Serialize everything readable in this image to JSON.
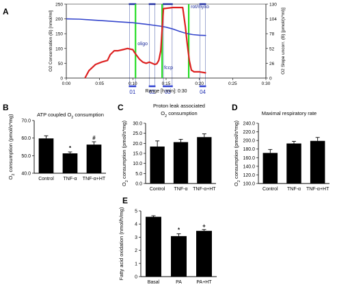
{
  "chart_data": [
    {
      "panel": "A",
      "type": "line",
      "title": "",
      "xlabel": "Range [h:min]: 0:30",
      "ylabel_left": "O2 Concentration (B) [nmol/ml]",
      "ylabel_right": "O2 Slope uncorr. (B) [pmol/(s*ml)]",
      "x_ticks": [
        "0:00",
        "0:05",
        "0:10",
        "0:15",
        "0:20",
        "0:25",
        "0:30"
      ],
      "x_range_minutes": [
        0,
        30
      ],
      "yleft_ticks": [
        0,
        50,
        100,
        150,
        200,
        250
      ],
      "ylim_left": [
        0,
        250
      ],
      "yright_ticks": [
        0,
        26,
        52,
        78,
        104,
        130
      ],
      "ylim_right": [
        0,
        130
      ],
      "grid": false,
      "series": [
        {
          "color": "#3344cc",
          "axis": "left",
          "x": [
            0,
            2,
            4,
            6,
            8,
            10,
            12,
            14,
            15,
            16,
            17,
            18,
            19,
            20,
            21
          ],
          "values": [
            200,
            199,
            196,
            193,
            190,
            187,
            182,
            176,
            172,
            166,
            158,
            151,
            147,
            145,
            144
          ]
        },
        {
          "color": "#dd2020",
          "axis": "right",
          "x": [
            2.8,
            3.4,
            4.4,
            5.3,
            6.2,
            6.6,
            7.2,
            7.8,
            8.5,
            9.2,
            10.0,
            10.3,
            11.0,
            11.5,
            12.0,
            12.5,
            13.3,
            13.6,
            13.9,
            14.2,
            14.6,
            16.0,
            17.5,
            17.9,
            18.2,
            18.5,
            18.8,
            19.2,
            20.0,
            21.0
          ],
          "values": [
            0,
            13,
            24,
            28,
            31,
            41,
            48,
            48,
            50,
            52,
            50,
            44,
            33,
            28,
            26,
            28,
            24,
            25,
            31,
            48,
            122,
            124,
            124,
            90,
            58,
            30,
            14,
            11,
            11,
            9
          ]
        }
      ],
      "markers": [
        {
          "label": "oligo",
          "x": 10.4
        },
        {
          "label": "fccp",
          "x": 14.4
        },
        {
          "label": "rot/myxo",
          "x": 18.4
        }
      ],
      "marker_lines_x": [
        10.4,
        14.4,
        18.4
      ],
      "boxes": [
        {
          "label": "01",
          "x_range": [
            9.5,
            10.4
          ]
        },
        {
          "label": "02",
          "x_range": [
            12.5,
            13.3
          ]
        },
        {
          "label": "03",
          "x_range": [
            14.6,
            15.9
          ]
        },
        {
          "label": "04",
          "x_range": [
            20.1,
            20.9
          ]
        }
      ]
    },
    {
      "panel": "B",
      "type": "bar",
      "title": "ATP coupled O2 consumption",
      "categories": [
        "Control",
        "TNF-α",
        "TNF-α+HT"
      ],
      "values": [
        59.8,
        51.3,
        56.3
      ],
      "errors": [
        1.5,
        0.8,
        1.6
      ],
      "significance": [
        "",
        "*",
        "#"
      ],
      "ylabel": "O2 consumption (pmol/s*mg)",
      "y_ticks": [
        40.0,
        50.0,
        60.0,
        70.0
      ],
      "ylim": [
        40,
        70
      ],
      "grid": false
    },
    {
      "panel": "C",
      "type": "bar",
      "title": "Proton leak associated O2 consumption",
      "categories": [
        "Control",
        "TNF-α",
        "TNF-α+HT"
      ],
      "values": [
        18.4,
        20.6,
        23.1
      ],
      "errors": [
        2.8,
        1.4,
        1.6
      ],
      "significance": [
        "",
        "",
        ""
      ],
      "ylabel": "O2 consumption (pmol/s*mg)",
      "y_ticks": [
        0.0,
        5.0,
        10.0,
        15.0,
        20.0,
        25.0,
        30.0
      ],
      "ylim": [
        0,
        30
      ],
      "grid": false
    },
    {
      "panel": "D",
      "type": "bar",
      "title": "Maximal respiratory rate",
      "categories": [
        "Control",
        "TNF-α",
        "TNF-α+HT"
      ],
      "values": [
        171,
        193,
        199
      ],
      "errors": [
        8,
        5,
        8
      ],
      "significance": [
        "",
        "",
        ""
      ],
      "ylabel": "O2 consumption (pmol/s*mg)",
      "y_ticks": [
        100.0,
        120.0,
        140.0,
        160.0,
        180.0,
        200.0,
        220.0,
        240.0
      ],
      "ylim": [
        100,
        240
      ],
      "grid": false
    },
    {
      "panel": "E",
      "type": "bar",
      "title": "",
      "categories": [
        "Basal",
        "PA",
        "PA+HT"
      ],
      "values": [
        4.55,
        3.08,
        3.48
      ],
      "errors": [
        0.08,
        0.18,
        0.1
      ],
      "significance": [
        "",
        "*",
        "+"
      ],
      "ylabel": "Fatty acid oxidation (nmol/h/mg)",
      "y_ticks": [
        0,
        1,
        2,
        3,
        4,
        5
      ],
      "ylim": [
        0,
        5
      ],
      "grid": false
    }
  ]
}
